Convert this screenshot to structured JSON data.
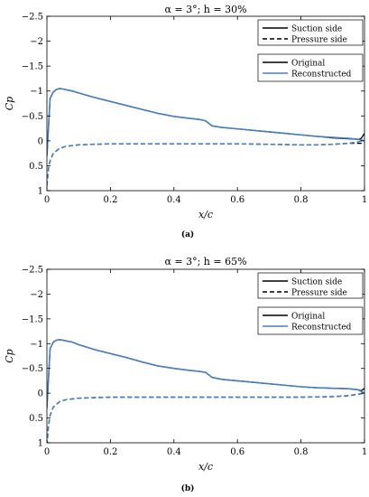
{
  "chart_data": [
    {
      "type": "line",
      "title": "α = 3°; h = 30%",
      "caption": "(a)",
      "xlabel": "x/c",
      "ylabel": "Cp",
      "xlim": [
        0,
        1
      ],
      "ylim": [
        -2.5,
        1
      ],
      "y_reversed": true,
      "xticks": [
        0,
        0.2,
        0.4,
        0.6,
        0.8,
        1
      ],
      "xtick_labels": [
        "0",
        "0.2",
        "0.4",
        "0.6",
        "0.8",
        "1"
      ],
      "yticks": [
        -2.5,
        -2,
        -1.5,
        -1,
        -0.5,
        0,
        0.5,
        1
      ],
      "ytick_labels": [
        "−2.5",
        "−2",
        "−1.5",
        "−1",
        "−0.5",
        "0",
        "0.5",
        "1"
      ],
      "grid": false,
      "legends": [
        {
          "placement": "top-right",
          "entries": [
            {
              "label": "Suction side",
              "style": "solid",
              "color": "#000000"
            },
            {
              "label": "Pressure side",
              "style": "dashed",
              "color": "#000000"
            }
          ]
        },
        {
          "placement": "top-right",
          "entries": [
            {
              "label": "Original",
              "style": "solid",
              "color": "#000000"
            },
            {
              "label": "Reconstructed",
              "style": "solid",
              "color": "#4a7ebb"
            }
          ]
        }
      ],
      "series": [
        {
          "side": "suction",
          "source": "original",
          "color": "#000000",
          "style": "solid",
          "x": [
            0,
            0.01,
            0.02,
            0.03,
            0.04,
            0.05,
            0.08,
            0.1,
            0.15,
            0.2,
            0.25,
            0.3,
            0.35,
            0.4,
            0.45,
            0.48,
            0.5,
            0.52,
            0.55,
            0.6,
            0.65,
            0.7,
            0.75,
            0.8,
            0.85,
            0.9,
            0.95,
            0.98,
            0.99,
            1.0
          ],
          "y": [
            0.3,
            -0.85,
            -0.98,
            -1.03,
            -1.05,
            -1.04,
            -1.0,
            -0.96,
            -0.87,
            -0.79,
            -0.71,
            -0.63,
            -0.55,
            -0.49,
            -0.45,
            -0.43,
            -0.4,
            -0.3,
            -0.27,
            -0.24,
            -0.21,
            -0.18,
            -0.15,
            -0.12,
            -0.09,
            -0.06,
            -0.04,
            -0.03,
            -0.05,
            -0.15
          ]
        },
        {
          "side": "pressure",
          "source": "original",
          "color": "#000000",
          "style": "dashed",
          "x": [
            0,
            0.005,
            0.01,
            0.02,
            0.04,
            0.06,
            0.1,
            0.15,
            0.2,
            0.3,
            0.4,
            0.5,
            0.6,
            0.7,
            0.8,
            0.85,
            0.9,
            0.95,
            1.0
          ],
          "y": [
            0.9,
            0.55,
            0.4,
            0.25,
            0.15,
            0.11,
            0.08,
            0.07,
            0.06,
            0.06,
            0.06,
            0.06,
            0.06,
            0.07,
            0.08,
            0.08,
            0.07,
            0.05,
            0.05
          ]
        },
        {
          "side": "suction",
          "source": "reconstructed",
          "color": "#4a7ebb",
          "style": "solid",
          "x": [
            0,
            0.01,
            0.02,
            0.03,
            0.04,
            0.05,
            0.08,
            0.1,
            0.15,
            0.2,
            0.25,
            0.3,
            0.35,
            0.4,
            0.45,
            0.48,
            0.5,
            0.52,
            0.55,
            0.6,
            0.65,
            0.7,
            0.75,
            0.8,
            0.85,
            0.9,
            0.95,
            0.98,
            1.0
          ],
          "y": [
            0.3,
            -0.85,
            -0.98,
            -1.03,
            -1.05,
            -1.04,
            -1.0,
            -0.96,
            -0.87,
            -0.79,
            -0.71,
            -0.63,
            -0.55,
            -0.49,
            -0.45,
            -0.43,
            -0.4,
            -0.3,
            -0.27,
            -0.24,
            -0.21,
            -0.18,
            -0.15,
            -0.12,
            -0.09,
            -0.07,
            -0.05,
            -0.03,
            0.0
          ]
        },
        {
          "side": "pressure",
          "source": "reconstructed",
          "color": "#4a7ebb",
          "style": "dashed",
          "x": [
            0,
            0.005,
            0.01,
            0.02,
            0.04,
            0.06,
            0.1,
            0.15,
            0.2,
            0.3,
            0.4,
            0.5,
            0.6,
            0.7,
            0.8,
            0.85,
            0.9,
            0.95,
            1.0
          ],
          "y": [
            0.9,
            0.55,
            0.4,
            0.25,
            0.15,
            0.11,
            0.08,
            0.07,
            0.06,
            0.06,
            0.06,
            0.06,
            0.06,
            0.07,
            0.08,
            0.08,
            0.07,
            0.05,
            0.0
          ]
        }
      ]
    },
    {
      "type": "line",
      "title": "α = 3°; h = 65%",
      "caption": "(b)",
      "xlabel": "x/c",
      "ylabel": "Cp",
      "xlim": [
        0,
        1
      ],
      "ylim": [
        -2.5,
        1
      ],
      "y_reversed": true,
      "xticks": [
        0,
        0.2,
        0.4,
        0.6,
        0.8,
        1
      ],
      "xtick_labels": [
        "0",
        "0.2",
        "0.4",
        "0.6",
        "0.8",
        "1"
      ],
      "yticks": [
        -2.5,
        -2,
        -1.5,
        -1,
        -0.5,
        0,
        0.5,
        1
      ],
      "ytick_labels": [
        "−2.5",
        "−2",
        "−1.5",
        "−1",
        "−0.5",
        "0",
        "0.5",
        "1"
      ],
      "grid": false,
      "legends": [
        {
          "placement": "top-right",
          "entries": [
            {
              "label": "Suction side",
              "style": "solid",
              "color": "#000000"
            },
            {
              "label": "Pressure side",
              "style": "dashed",
              "color": "#000000"
            }
          ]
        },
        {
          "placement": "top-right",
          "entries": [
            {
              "label": "Original",
              "style": "solid",
              "color": "#000000"
            },
            {
              "label": "Reconstructed",
              "style": "solid",
              "color": "#4a7ebb"
            }
          ]
        }
      ],
      "series": [
        {
          "side": "suction",
          "source": "original",
          "color": "#000000",
          "style": "solid",
          "x": [
            0,
            0.01,
            0.02,
            0.03,
            0.04,
            0.05,
            0.08,
            0.1,
            0.15,
            0.2,
            0.25,
            0.3,
            0.35,
            0.4,
            0.45,
            0.48,
            0.5,
            0.52,
            0.55,
            0.6,
            0.65,
            0.7,
            0.75,
            0.8,
            0.85,
            0.9,
            0.95,
            0.98,
            0.99,
            1.0
          ],
          "y": [
            0.3,
            -0.9,
            -1.03,
            -1.07,
            -1.08,
            -1.07,
            -1.03,
            -0.98,
            -0.88,
            -0.8,
            -0.72,
            -0.63,
            -0.55,
            -0.5,
            -0.46,
            -0.44,
            -0.42,
            -0.32,
            -0.28,
            -0.25,
            -0.22,
            -0.19,
            -0.16,
            -0.13,
            -0.11,
            -0.1,
            -0.09,
            -0.07,
            -0.05,
            -0.1
          ]
        },
        {
          "side": "pressure",
          "source": "original",
          "color": "#000000",
          "style": "dashed",
          "x": [
            0,
            0.005,
            0.01,
            0.02,
            0.04,
            0.06,
            0.1,
            0.15,
            0.2,
            0.3,
            0.4,
            0.5,
            0.6,
            0.7,
            0.8,
            0.9,
            0.95,
            0.98,
            1.0
          ],
          "y": [
            1.05,
            0.65,
            0.45,
            0.28,
            0.17,
            0.13,
            0.1,
            0.09,
            0.08,
            0.08,
            0.08,
            0.08,
            0.08,
            0.08,
            0.08,
            0.07,
            0.05,
            0.02,
            0.0
          ]
        },
        {
          "side": "suction",
          "source": "reconstructed",
          "color": "#4a7ebb",
          "style": "solid",
          "x": [
            0,
            0.01,
            0.02,
            0.03,
            0.04,
            0.05,
            0.08,
            0.1,
            0.15,
            0.2,
            0.25,
            0.3,
            0.35,
            0.4,
            0.45,
            0.48,
            0.5,
            0.52,
            0.55,
            0.6,
            0.65,
            0.7,
            0.75,
            0.8,
            0.85,
            0.9,
            0.95,
            0.98,
            1.0
          ],
          "y": [
            0.3,
            -0.9,
            -1.03,
            -1.07,
            -1.08,
            -1.07,
            -1.03,
            -0.98,
            -0.88,
            -0.8,
            -0.72,
            -0.63,
            -0.55,
            -0.5,
            -0.46,
            -0.44,
            -0.42,
            -0.32,
            -0.28,
            -0.25,
            -0.22,
            -0.19,
            -0.16,
            -0.13,
            -0.11,
            -0.1,
            -0.09,
            -0.07,
            0.0
          ]
        },
        {
          "side": "pressure",
          "source": "reconstructed",
          "color": "#4a7ebb",
          "style": "dashed",
          "x": [
            0,
            0.005,
            0.01,
            0.02,
            0.04,
            0.06,
            0.1,
            0.15,
            0.2,
            0.3,
            0.4,
            0.5,
            0.6,
            0.7,
            0.8,
            0.9,
            0.95,
            0.98,
            1.0
          ],
          "y": [
            1.05,
            0.65,
            0.45,
            0.28,
            0.17,
            0.13,
            0.1,
            0.09,
            0.08,
            0.08,
            0.08,
            0.08,
            0.08,
            0.08,
            0.08,
            0.07,
            0.05,
            0.02,
            0.0
          ]
        }
      ]
    }
  ]
}
